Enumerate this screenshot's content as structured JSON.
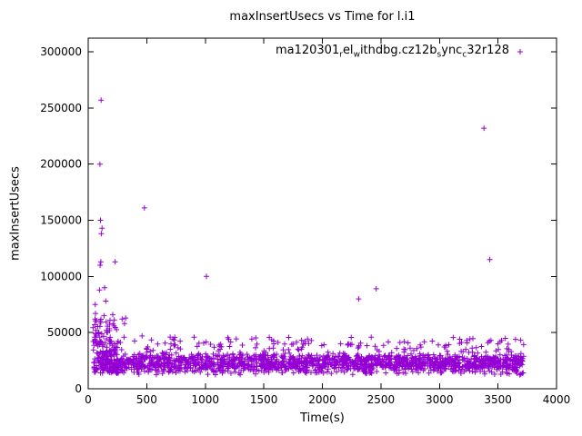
{
  "title": "maxInsertUsecs vs Time for l.i1",
  "legend": {
    "name": "ma120301_rel_withdbg.cz12b_sync_c32r128",
    "segments": [
      {
        "t": "ma120301"
      },
      {
        "t": "r",
        "sub": true
      },
      {
        "t": "el"
      },
      {
        "t": "w",
        "sub": true
      },
      {
        "t": "ithdbg.cz12b"
      },
      {
        "t": "s",
        "sub": true
      },
      {
        "t": "ync"
      },
      {
        "t": "c",
        "sub": true
      },
      {
        "t": "32r128"
      }
    ],
    "marker": "+"
  },
  "colors": {
    "points": "#9400d3",
    "text": "#000000",
    "border": "#000000"
  },
  "chart_data": {
    "type": "scatter",
    "title": "maxInsertUsecs vs Time for l.i1",
    "xlabel": "Time(s)",
    "ylabel": "maxInsertUsecs",
    "xlim": [
      0,
      4000
    ],
    "ylim": [
      0,
      300000
    ],
    "x_ticks": [
      0,
      500,
      1000,
      1500,
      2000,
      2500,
      3000,
      3500,
      4000
    ],
    "y_ticks": [
      0,
      50000,
      100000,
      150000,
      200000,
      250000,
      300000
    ],
    "grid": false,
    "legend_position": "top-right-inside",
    "series": [
      {
        "name": "ma120301_rel_withdbg.cz12b_sync_c32r128",
        "color": "#9400d3",
        "marker": "+",
        "description": "dense band of max insert latencies ~12000-46000 usecs from t=40s to t=3720s with sparse high outliers"
      }
    ],
    "outliers": [
      [
        60,
        75000
      ],
      [
        62,
        67000
      ],
      [
        58,
        62000
      ],
      [
        55,
        57000
      ],
      [
        65,
        52000
      ],
      [
        70,
        47000
      ],
      [
        58,
        44000
      ],
      [
        64,
        41000
      ],
      [
        100,
        200000
      ],
      [
        110,
        257000
      ],
      [
        105,
        150000
      ],
      [
        118,
        143000
      ],
      [
        112,
        138000
      ],
      [
        108,
        113000
      ],
      [
        102,
        110000
      ],
      [
        96,
        88000
      ],
      [
        140,
        90000
      ],
      [
        150,
        78000
      ],
      [
        135,
        65000
      ],
      [
        160,
        37000
      ],
      [
        230,
        113000
      ],
      [
        210,
        66000
      ],
      [
        290,
        62000
      ],
      [
        320,
        63000
      ],
      [
        310,
        58000
      ],
      [
        480,
        161000
      ],
      [
        460,
        47000
      ],
      [
        700,
        46000
      ],
      [
        1010,
        100000
      ],
      [
        1200,
        44000
      ],
      [
        2310,
        80000
      ],
      [
        2460,
        89000
      ],
      [
        2700,
        42000
      ],
      [
        3380,
        232000
      ],
      [
        3430,
        115000
      ],
      [
        3440,
        43000
      ],
      [
        3500,
        40000
      ]
    ],
    "band": {
      "seed": 42,
      "x_min": 80,
      "x_max": 3720,
      "count_low": 1500,
      "y_low": [
        12000,
        32000
      ],
      "count_high": 350,
      "y_high": [
        26000,
        46000
      ],
      "early": {
        "x_min": 40,
        "x_max": 260,
        "count": 130,
        "y": [
          14000,
          62000
        ]
      }
    }
  }
}
